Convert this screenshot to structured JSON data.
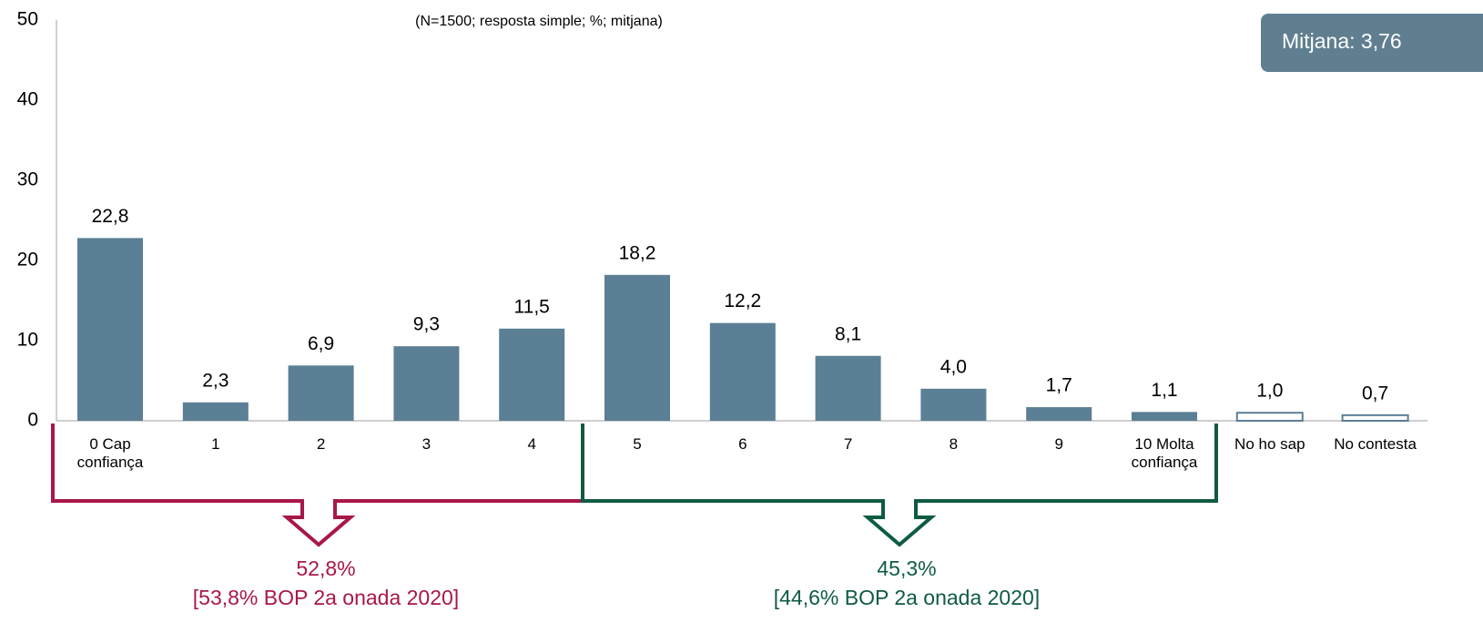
{
  "chart_data": {
    "type": "bar",
    "subtitle": "(N=1500; resposta simple; %; mitjana)",
    "mean_label": "Mitjana: 3,76",
    "categories": [
      "0 Cap confiança",
      "1",
      "2",
      "3",
      "4",
      "5",
      "6",
      "7",
      "8",
      "9",
      "10 Molta confiança",
      "No ho sap",
      "No contesta"
    ],
    "values": [
      22.8,
      2.3,
      6.9,
      9.3,
      11.5,
      18.2,
      12.2,
      8.1,
      4.0,
      1.7,
      1.1,
      1.0,
      0.7
    ],
    "value_labels": [
      "22,8",
      "2,3",
      "6,9",
      "9,3",
      "11,5",
      "18,2",
      "12,2",
      "8,1",
      "4,0",
      "1,7",
      "1,1",
      "1,0",
      "0,7"
    ],
    "color": "#5b7f95",
    "colors": [
      "#5b7f95",
      "#5b7f95",
      "#5b7f95",
      "#5b7f95",
      "#5b7f95",
      "#5b7f95",
      "#5b7f95",
      "#5b7f95",
      "#5b7f95",
      "#5b7f95",
      "#5b7f95",
      "#ffffff",
      "#ffffff"
    ],
    "ylim": [
      0,
      50
    ],
    "yticks": [
      0,
      10,
      20,
      30,
      40,
      50
    ],
    "grid": false,
    "groups": [
      {
        "label": "52,8%",
        "note": "[53,8% BOP 2a onada 2020]",
        "color": "#a8174a"
      },
      {
        "label": "45,3%",
        "note": "[44,6% BOP 2a onada 2020]",
        "color": "#0e5c3f"
      }
    ]
  }
}
